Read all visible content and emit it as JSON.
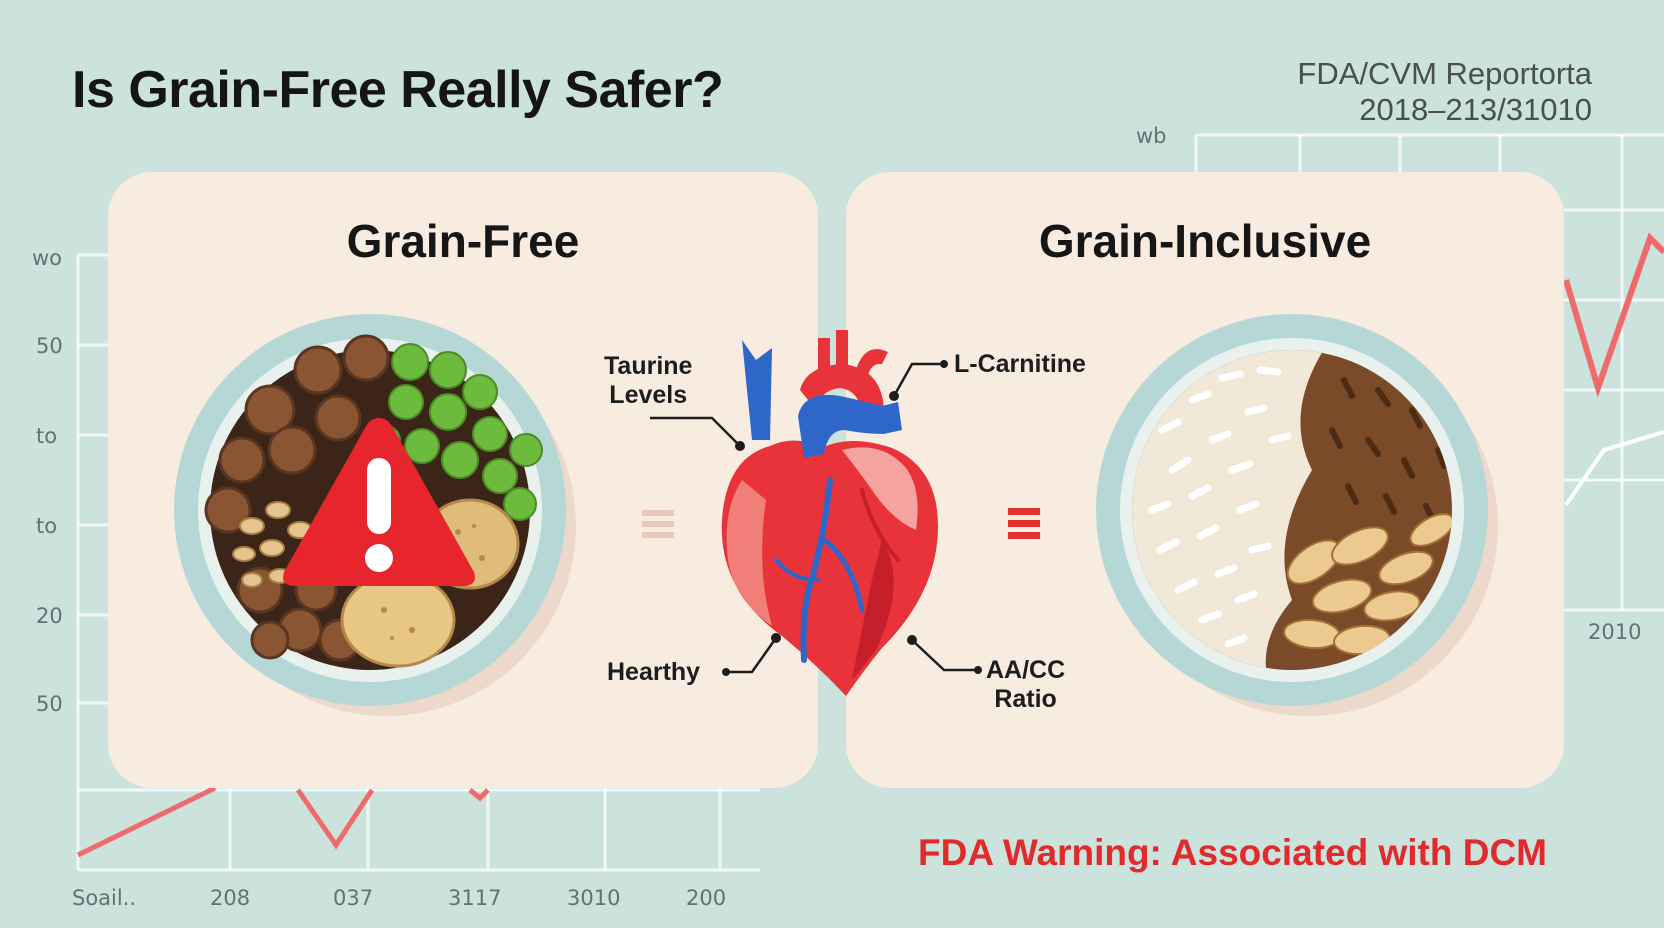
{
  "title": "Is Grain-Free Really Safer?",
  "report": {
    "line1": "FDA/CVM Reportorta",
    "line2": "2018–213/31010"
  },
  "left_axis_ticks": [
    "wo",
    "50",
    "to",
    "to",
    "20",
    "50"
  ],
  "bottom_axis_ticks": [
    "Soail..",
    "208",
    "037",
    "3117",
    "3010",
    "200"
  ],
  "right_axis_ticks": {
    "top": "wb",
    "bottom": "2010"
  },
  "panels": {
    "left": {
      "title": "Grain-Free"
    },
    "right": {
      "title": "Grain-Inclusive"
    }
  },
  "heart_labels": {
    "taurine": "Taurine\nLevels",
    "carnitine": "L-Carnitine",
    "hearthy": "Hearthy",
    "ratio": "AA/CC\nRatio"
  },
  "warning": "FDA Warning: Associated with DCM",
  "colors": {
    "background": "#cbe2dd",
    "panel": "#f8ece0",
    "warning_red": "#e02a2b",
    "heart_red": "#e8333a",
    "heart_blue": "#2f66c9",
    "trend_red": "#ef6a6a"
  },
  "icons": [
    "warning-triangle-icon",
    "heart-icon",
    "equals-icon"
  ]
}
